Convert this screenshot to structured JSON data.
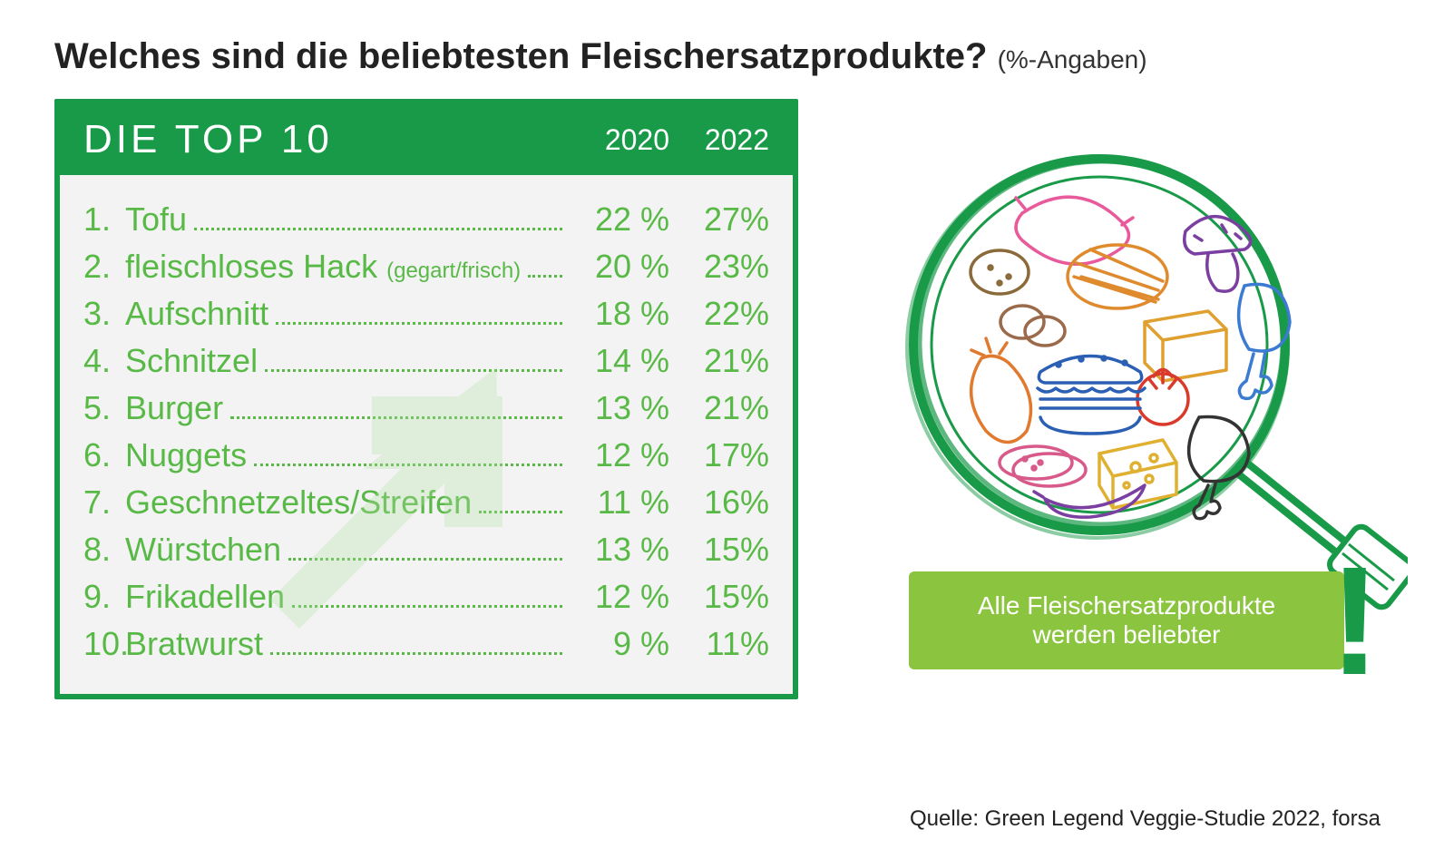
{
  "title_main": "Welches sind die beliebtesten Fleischersatzprodukte?",
  "title_sub": "(%-Angaben)",
  "panel": {
    "header_title": "DIE TOP 10",
    "col_a": "2020",
    "col_b": "2022",
    "header_bg": "#189a48",
    "header_fg": "#ffffff",
    "row_color": "#59b947",
    "panel_bg": "#f3f3f3",
    "border_color": "#189a48",
    "title_fontsize": 44,
    "col_fontsize": 32,
    "row_fontsize": 36,
    "note_fontsize": 24,
    "rows": [
      {
        "rank": "1.",
        "label": "Tofu",
        "note": "",
        "a": "22 %",
        "b": "27%"
      },
      {
        "rank": "2.",
        "label": "fleischloses Hack",
        "note": "(gegart/frisch)",
        "a": "20 %",
        "b": "23%"
      },
      {
        "rank": "3.",
        "label": "Aufschnitt",
        "note": "",
        "a": "18 %",
        "b": "22%"
      },
      {
        "rank": "4.",
        "label": "Schnitzel",
        "note": "",
        "a": "14 %",
        "b": "21%"
      },
      {
        "rank": "5.",
        "label": "Burger",
        "note": "",
        "a": "13 %",
        "b": "21%"
      },
      {
        "rank": "6.",
        "label": "Nuggets",
        "note": "",
        "a": "12 %",
        "b": "17%"
      },
      {
        "rank": "7.",
        "label": "Geschnetzeltes/Streifen",
        "note": "",
        "a": "11 %",
        "b": "16%"
      },
      {
        "rank": "8.",
        "label": "Würstchen",
        "note": "",
        "a": "13 %",
        "b": "15%"
      },
      {
        "rank": "9.",
        "label": "Frikadellen",
        "note": "",
        "a": "12 %",
        "b": "15%"
      },
      {
        "rank": "10.",
        "label": "Bratwurst",
        "note": "",
        "a": "9 %",
        "b": "11%"
      }
    ]
  },
  "arrow_color": "#b3e0a6",
  "callout": {
    "text": "Alle Fleischersatzprodukte werden beliebter",
    "bg": "#8bc53f",
    "fg": "#ffffff",
    "excl_color": "#189a48",
    "fontsize": 28
  },
  "magnifier": {
    "ring_color": "#189a48",
    "handle_color": "#189a48",
    "items": [
      {
        "name": "sausage-icon",
        "color": "#e85a9b"
      },
      {
        "name": "steak-icon",
        "color": "#e08a2e"
      },
      {
        "name": "mushroom-icon",
        "color": "#7a3fa0"
      },
      {
        "name": "drumstick-icon",
        "color": "#3b7bd1"
      },
      {
        "name": "tofu-icon",
        "color": "#e0a030"
      },
      {
        "name": "tomato-icon",
        "color": "#d93a2b"
      },
      {
        "name": "burger-icon",
        "color": "#2b5fb3"
      },
      {
        "name": "eggplant-icon",
        "color": "#e07a2e"
      },
      {
        "name": "salami-icon",
        "color": "#d85a8a"
      },
      {
        "name": "cheese-icon",
        "color": "#e0b030"
      },
      {
        "name": "chicken-icon",
        "color": "#333333"
      },
      {
        "name": "chili-icon",
        "color": "#7a3fa0"
      },
      {
        "name": "potato-icon",
        "color": "#8a6a3a"
      },
      {
        "name": "meatball-icon",
        "color": "#9a6a4a"
      }
    ]
  },
  "source": "Quelle: Green Legend Veggie-Studie 2022, forsa"
}
